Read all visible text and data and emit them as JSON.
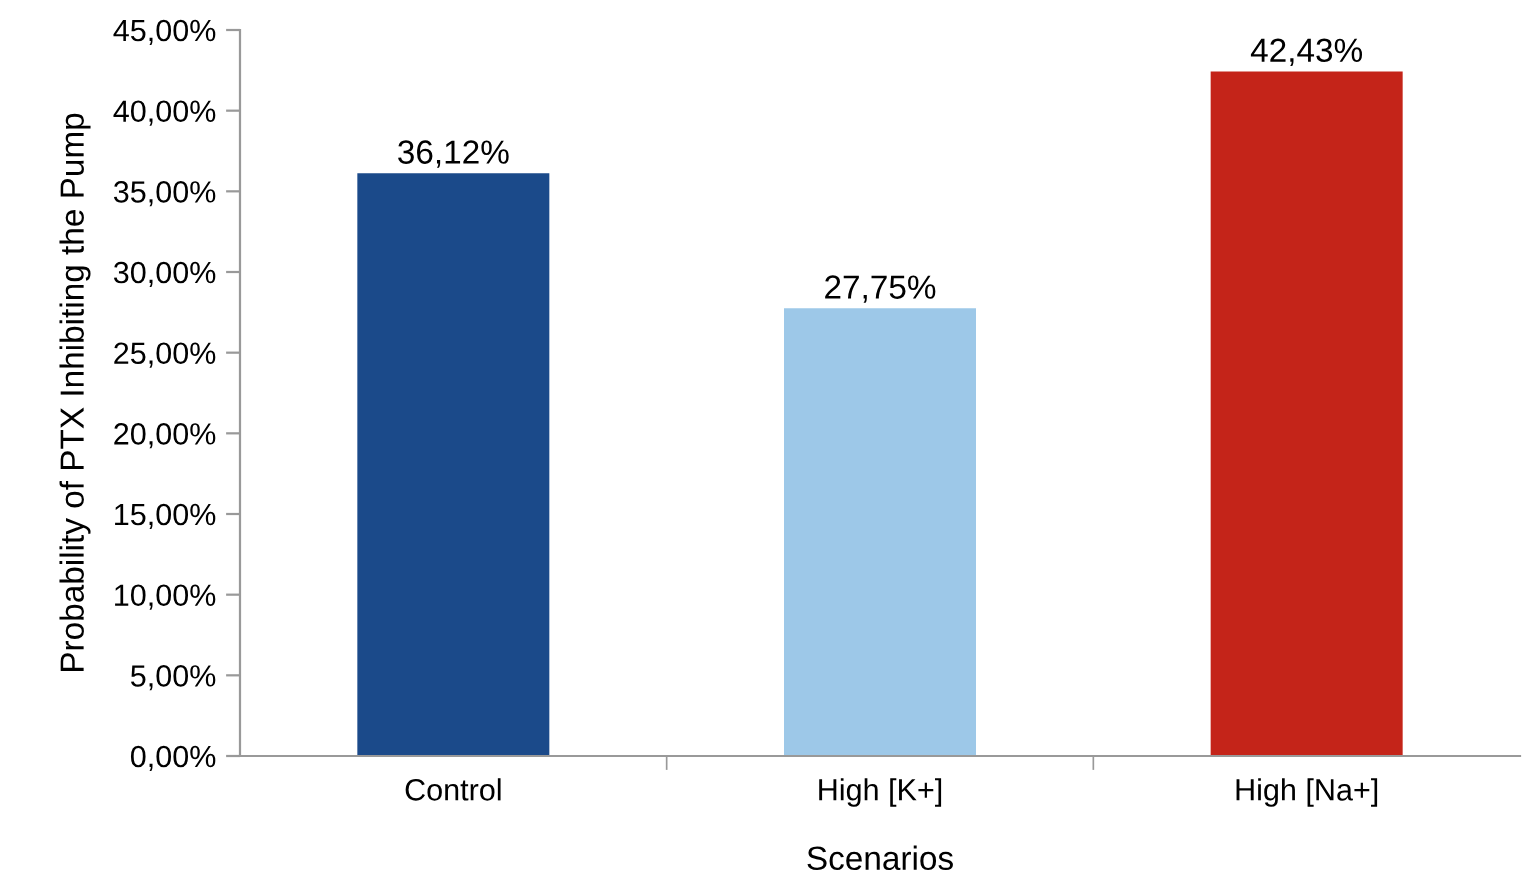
{
  "chart_data": {
    "type": "bar",
    "xlabel": "Scenarios",
    "ylabel": "Probability of PTX Inhibiting the Pump",
    "categories": [
      "Control",
      "High [K+]",
      "High [Na+]"
    ],
    "values": [
      36.12,
      27.75,
      42.43
    ],
    "colors": [
      "#1b4a8a",
      "#9dc8e8",
      "#c42419"
    ],
    "value_labels": [
      "36,12%",
      "27,75%",
      "42,43%"
    ],
    "ylim": [
      0,
      45
    ],
    "yticks": [
      {
        "value": 0,
        "label": "0,00%"
      },
      {
        "value": 5,
        "label": "5,00%"
      },
      {
        "value": 10,
        "label": "10,00%"
      },
      {
        "value": 15,
        "label": "15,00%"
      },
      {
        "value": 20,
        "label": "20,00%"
      },
      {
        "value": 25,
        "label": "25,00%"
      },
      {
        "value": 30,
        "label": "30,00%"
      },
      {
        "value": 35,
        "label": "35,00%"
      },
      {
        "value": 40,
        "label": "40,00%"
      },
      {
        "value": 45,
        "label": "45,00%"
      }
    ],
    "grid": false,
    "legend": false
  }
}
